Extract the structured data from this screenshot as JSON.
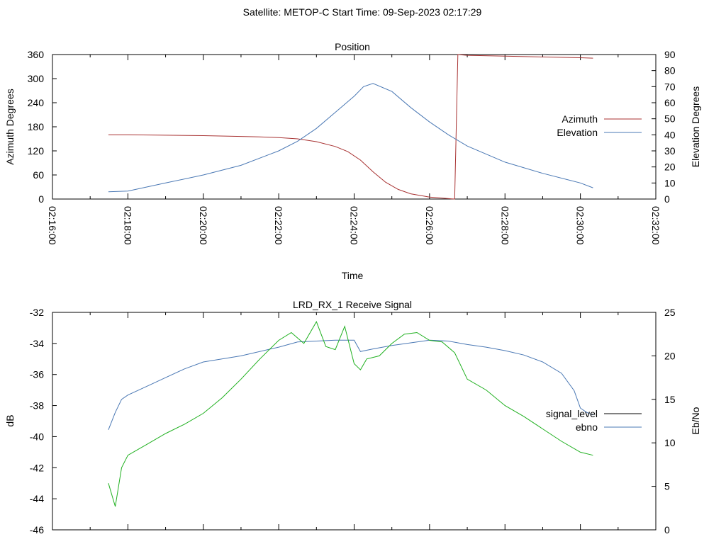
{
  "page": {
    "title": "Satellite: METOP-C    Start Time: 09-Sep-2023 02:17:29"
  },
  "chart_data": [
    {
      "type": "line",
      "title": "Position",
      "xlabel": "Time",
      "ylabel": "Azimuth Degrees",
      "y2label": "Elevation Degrees",
      "x_ticks": [
        "02:16:00",
        "02:18:00",
        "02:20:00",
        "02:22:00",
        "02:24:00",
        "02:26:00",
        "02:28:00",
        "02:30:00",
        "02:32:00"
      ],
      "xlim": [
        "02:16:00",
        "02:32:00"
      ],
      "ylim": [
        0,
        360
      ],
      "y_ticks": [
        0,
        60,
        120,
        180,
        240,
        300,
        360
      ],
      "y2lim": [
        0,
        90
      ],
      "y2_ticks": [
        0,
        10,
        20,
        30,
        40,
        50,
        60,
        70,
        80,
        90
      ],
      "grid": false,
      "legend": "right",
      "series": [
        {
          "name": "Azimuth",
          "axis": "y",
          "color": "#a83232",
          "x": [
            "02:17:29",
            "02:18:00",
            "02:19:00",
            "02:20:00",
            "02:21:00",
            "02:21:30",
            "02:22:00",
            "02:22:30",
            "02:23:00",
            "02:23:30",
            "02:23:50",
            "02:24:10",
            "02:24:30",
            "02:24:50",
            "02:25:10",
            "02:25:30",
            "02:26:00",
            "02:26:30",
            "02:26:40",
            "02:26:45",
            "02:27:00",
            "02:28:00",
            "02:29:00",
            "02:30:00",
            "02:30:20"
          ],
          "y": [
            160,
            160,
            159,
            158,
            156,
            155,
            153,
            150,
            143,
            131,
            118,
            97,
            68,
            42,
            24,
            13,
            5,
            1,
            0,
            360,
            358,
            356,
            354,
            352,
            351
          ]
        },
        {
          "name": "Elevation",
          "axis": "y2",
          "color": "#4a78b4",
          "x": [
            "02:17:29",
            "02:18:00",
            "02:19:00",
            "02:20:00",
            "02:21:00",
            "02:22:00",
            "02:22:30",
            "02:23:00",
            "02:23:30",
            "02:24:00",
            "02:24:15",
            "02:24:30",
            "02:25:00",
            "02:25:30",
            "02:26:00",
            "02:26:30",
            "02:27:00",
            "02:28:00",
            "02:29:00",
            "02:30:00",
            "02:30:20"
          ],
          "y": [
            4.5,
            5,
            10,
            15,
            21,
            30,
            36,
            44,
            54,
            64,
            70,
            72,
            67,
            57,
            48,
            40,
            33,
            23,
            16,
            10,
            7
          ]
        }
      ]
    },
    {
      "type": "line",
      "title": "LRD_RX_1 Receive Signal",
      "ylabel": "dB",
      "y2label": "Eb/No",
      "xlim": [
        "02:16:00",
        "02:32:00"
      ],
      "ylim": [
        -46,
        -32
      ],
      "y_ticks": [
        -46,
        -44,
        -42,
        -40,
        -38,
        -36,
        -34,
        -32
      ],
      "y2lim": [
        0,
        25
      ],
      "y2_ticks": [
        0,
        5,
        10,
        15,
        20,
        25
      ],
      "grid": false,
      "legend": "right",
      "series": [
        {
          "name": "signal_level",
          "axis": "y",
          "color": "#000000",
          "x": [],
          "y": []
        },
        {
          "name": "ebno",
          "axis": "y2",
          "color": "#4a78b4",
          "x": [
            "02:17:29",
            "02:17:40",
            "02:17:50",
            "02:18:00",
            "02:18:30",
            "02:19:00",
            "02:19:30",
            "02:20:00",
            "02:21:00",
            "02:22:00",
            "02:22:30",
            "02:23:00",
            "02:23:30",
            "02:24:00",
            "02:24:10",
            "02:24:30",
            "02:25:00",
            "02:25:30",
            "02:26:00",
            "02:26:30",
            "02:27:00",
            "02:27:30",
            "02:28:00",
            "02:28:30",
            "02:29:00",
            "02:29:30",
            "02:29:50",
            "02:30:00",
            "02:30:10",
            "02:30:20"
          ],
          "y": [
            11.5,
            13.5,
            15,
            15.5,
            16.5,
            17.5,
            18.5,
            19.3,
            20,
            21,
            21.6,
            21.7,
            21.8,
            21.8,
            20.5,
            20.8,
            21.2,
            21.5,
            21.8,
            21.7,
            21.3,
            21,
            20.6,
            20.1,
            19.3,
            18,
            16,
            14,
            13.5,
            13.2
          ]
        },
        {
          "color": "#1fb01f",
          "axis": "y",
          "x": [
            "02:17:29",
            "02:17:40",
            "02:17:50",
            "02:18:00",
            "02:18:30",
            "02:19:00",
            "02:19:30",
            "02:20:00",
            "02:20:30",
            "02:21:00",
            "02:21:30",
            "02:22:00",
            "02:22:20",
            "02:22:40",
            "02:23:00",
            "02:23:15",
            "02:23:30",
            "02:23:45",
            "02:24:00",
            "02:24:10",
            "02:24:20",
            "02:24:40",
            "02:25:00",
            "02:25:20",
            "02:25:40",
            "02:26:00",
            "02:26:20",
            "02:26:40",
            "02:27:00",
            "02:27:30",
            "02:28:00",
            "02:28:30",
            "02:29:00",
            "02:29:30",
            "02:30:00",
            "02:30:20"
          ],
          "y": [
            -43,
            -44.5,
            -42,
            -41.2,
            -40.5,
            -39.8,
            -39.2,
            -38.5,
            -37.5,
            -36.3,
            -35,
            -33.8,
            -33.3,
            -34,
            -32.6,
            -34.2,
            -34.4,
            -32.9,
            -35.3,
            -35.7,
            -35,
            -34.8,
            -34,
            -33.4,
            -33.3,
            -33.8,
            -33.9,
            -34.6,
            -36.3,
            -37,
            -38,
            -38.7,
            -39.5,
            -40.3,
            -41,
            -41.2
          ]
        }
      ]
    }
  ]
}
